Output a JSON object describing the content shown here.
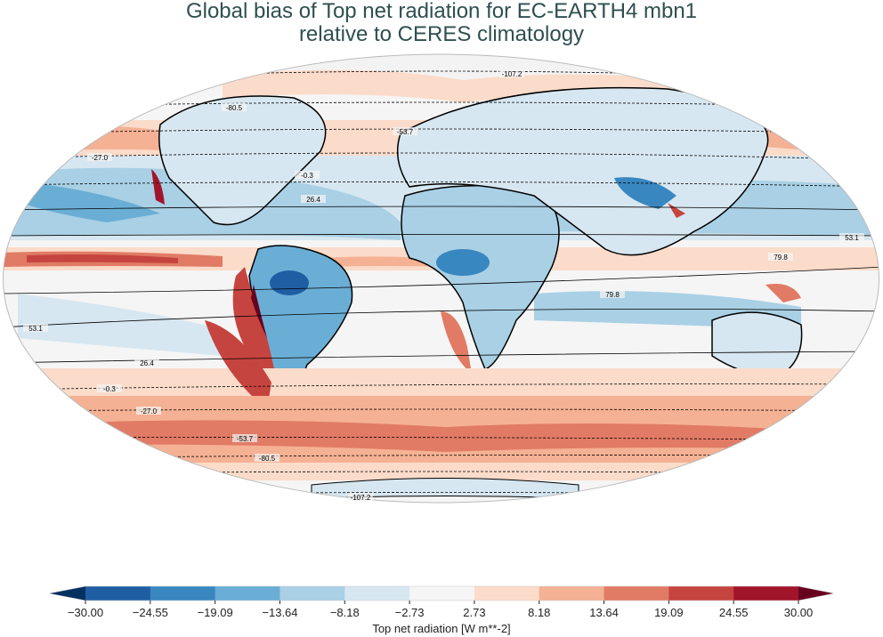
{
  "title": {
    "line1": "Global bias of Top net radiation for EC-EARTH4 mbn1",
    "line2": "relative to CERES climatology"
  },
  "map": {
    "projection": "robinson",
    "contour_labels": [
      "-107.2",
      "-80.5",
      "-53.7",
      "-27.0",
      "-0.3",
      "26.4",
      "53.1",
      "79.8",
      "79.8",
      "53.1",
      "26.4",
      "-0.3",
      "-27.0",
      "-53.7",
      "-80.5",
      "-107.2"
    ]
  },
  "colorbar": {
    "label": "Top net radiation [W m**-2]",
    "ticks": [
      "−30.00",
      "−24.55",
      "−19.09",
      "−13.64",
      "−8.18",
      "−2.73",
      "2.73",
      "8.18",
      "13.64",
      "19.09",
      "24.55",
      "30.00"
    ],
    "colors": [
      "#1f5ea3",
      "#3987c0",
      "#6aaed5",
      "#a9d0e5",
      "#d7e7f1",
      "#f5f5f5",
      "#fbdbc9",
      "#f5b194",
      "#e17b65",
      "#c6443f",
      "#a1152a"
    ],
    "extend_low_color": "#06305f",
    "extend_high_color": "#67001f"
  }
}
